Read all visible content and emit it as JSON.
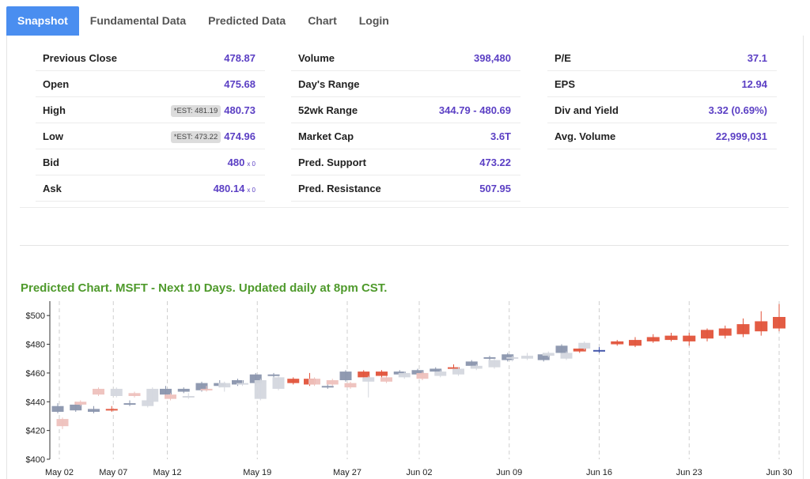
{
  "tabs": [
    {
      "label": "Snapshot",
      "active": true
    },
    {
      "label": "Fundamental Data",
      "active": false
    },
    {
      "label": "Predicted Data",
      "active": false
    },
    {
      "label": "Chart",
      "active": false
    },
    {
      "label": "Login",
      "active": false
    }
  ],
  "stats": {
    "col1": [
      {
        "label": "Previous Close",
        "value": "478.87"
      },
      {
        "label": "Open",
        "value": "475.68"
      },
      {
        "label": "High",
        "est": "*EST: 481.19",
        "value": "480.73"
      },
      {
        "label": "Low",
        "est": "*EST: 473.22",
        "value": "474.96"
      },
      {
        "label": "Bid",
        "value": "480",
        "suffix": "x 0"
      },
      {
        "label": "Ask",
        "value": "480.14",
        "suffix": "x 0"
      }
    ],
    "col2": [
      {
        "label": "Volume",
        "value": "398,480"
      },
      {
        "label": "Day's Range",
        "value": ""
      },
      {
        "label": "52wk Range",
        "value": "344.79 - 480.69"
      },
      {
        "label": "Market Cap",
        "value": "3.6T"
      },
      {
        "label": "Pred. Support",
        "value": "473.22"
      },
      {
        "label": "Pred. Resistance",
        "value": "507.95"
      }
    ],
    "col3": [
      {
        "label": "P/E",
        "value": "37.1"
      },
      {
        "label": "EPS",
        "value": "12.94"
      },
      {
        "label": "Div and Yield",
        "value": "3.32 (0.69%)"
      },
      {
        "label": "Avg. Volume",
        "value": "22,999,031"
      }
    ]
  },
  "chart_title": "Predicted Chart. MSFT - Next 10 Days. Updated daily at 8pm CST.",
  "colors": {
    "accent": "#4a8ef0",
    "value_text": "#5b3fc4",
    "title_green": "#4f9a2c",
    "actual_candle": "#8a95ad",
    "actual_light": "#d4d7de",
    "predicted_light": "#eec1bd",
    "predicted_strong": "#e2533a",
    "current_line": "#3b4fa8"
  },
  "chart_data": {
    "type": "candlestick",
    "title": "Predicted Chart. MSFT - Next 10 Days. Updated daily at 8pm CST.",
    "ylim": [
      400,
      510
    ],
    "yticks": [
      "$400",
      "$420",
      "$440",
      "$460",
      "$480",
      "$500"
    ],
    "xticks": [
      "May 02",
      "May 07",
      "May 12",
      "May 19",
      "May 27",
      "Jun 02",
      "Jun 09",
      "Jun 16",
      "Jun 23",
      "Jun 30"
    ],
    "candles": [
      {
        "x": "May 02",
        "o": 433,
        "c": 437,
        "h": 439,
        "l": 432,
        "kind": "actual"
      },
      {
        "x": "May 02p",
        "o": 428,
        "c": 423,
        "h": 429,
        "l": 421,
        "kind": "pred-light"
      },
      {
        "x": "May 05",
        "o": 434,
        "c": 438,
        "h": 440,
        "l": 433,
        "kind": "actual"
      },
      {
        "x": "May 05p",
        "o": 438,
        "c": 440,
        "h": 441,
        "l": 437,
        "kind": "pred-light"
      },
      {
        "x": "May 06",
        "o": 433,
        "c": 435,
        "h": 437,
        "l": 432,
        "kind": "actual"
      },
      {
        "x": "May 06p",
        "o": 445,
        "c": 449,
        "h": 450,
        "l": 444,
        "kind": "pred-light"
      },
      {
        "x": "May 07",
        "o": 434,
        "c": 435,
        "h": 437,
        "l": 433,
        "kind": "pred-strong"
      },
      {
        "x": "May 07p",
        "o": 444,
        "c": 449,
        "h": 450,
        "l": 443,
        "kind": "actual-light"
      },
      {
        "x": "May 08",
        "o": 438,
        "c": 439,
        "h": 441,
        "l": 437,
        "kind": "actual"
      },
      {
        "x": "May 08p",
        "o": 444,
        "c": 446,
        "h": 447,
        "l": 443,
        "kind": "pred-light"
      },
      {
        "x": "May 09",
        "o": 437,
        "c": 441,
        "h": 443,
        "l": 436,
        "kind": "actual-light"
      },
      {
        "x": "May 09p",
        "o": 440,
        "c": 449,
        "h": 450,
        "l": 438,
        "kind": "actual-light"
      },
      {
        "x": "May 12",
        "o": 445,
        "c": 449,
        "h": 451,
        "l": 444,
        "kind": "actual"
      },
      {
        "x": "May 12p",
        "o": 442,
        "c": 445,
        "h": 446,
        "l": 441,
        "kind": "pred-light"
      },
      {
        "x": "May 13",
        "o": 447,
        "c": 449,
        "h": 450,
        "l": 446,
        "kind": "actual"
      },
      {
        "x": "May 13p",
        "o": 443,
        "c": 444,
        "h": 446,
        "l": 442,
        "kind": "actual-light"
      },
      {
        "x": "May 14",
        "o": 448,
        "c": 453,
        "h": 454,
        "l": 447,
        "kind": "actual"
      },
      {
        "x": "May 14p",
        "o": 448,
        "c": 449,
        "h": 451,
        "l": 447,
        "kind": "pred-light"
      },
      {
        "x": "May 15",
        "o": 451,
        "c": 453,
        "h": 455,
        "l": 450,
        "kind": "actual"
      },
      {
        "x": "May 15p",
        "o": 450,
        "c": 453,
        "h": 454,
        "l": 447,
        "kind": "actual-light"
      },
      {
        "x": "May 16",
        "o": 452,
        "c": 455,
        "h": 456,
        "l": 451,
        "kind": "actual"
      },
      {
        "x": "May 16p",
        "o": 452,
        "c": 453,
        "h": 455,
        "l": 451,
        "kind": "actual-light"
      },
      {
        "x": "May 19",
        "o": 453,
        "c": 459,
        "h": 460,
        "l": 451,
        "kind": "actual"
      },
      {
        "x": "May 19p",
        "o": 442,
        "c": 455,
        "h": 456,
        "l": 441,
        "kind": "actual-light"
      },
      {
        "x": "May 20",
        "o": 458,
        "c": 459,
        "h": 460,
        "l": 457,
        "kind": "actual"
      },
      {
        "x": "May 20p",
        "o": 449,
        "c": 457,
        "h": 458,
        "l": 448,
        "kind": "actual-light"
      },
      {
        "x": "May 21",
        "o": 453,
        "c": 456,
        "h": 457,
        "l": 452,
        "kind": "pred-strong"
      },
      {
        "x": "May 22",
        "o": 452,
        "c": 456,
        "h": 460,
        "l": 451,
        "kind": "pred-strong"
      },
      {
        "x": "May 22p",
        "o": 452,
        "c": 456,
        "h": 457,
        "l": 451,
        "kind": "pred-light"
      },
      {
        "x": "May 23",
        "o": 450,
        "c": 451,
        "h": 452,
        "l": 449,
        "kind": "actual"
      },
      {
        "x": "May 23p",
        "o": 452,
        "c": 455,
        "h": 456,
        "l": 451,
        "kind": "pred-light"
      },
      {
        "x": "May 27",
        "o": 455,
        "c": 461,
        "h": 462,
        "l": 454,
        "kind": "actual"
      },
      {
        "x": "May 27p",
        "o": 450,
        "c": 453,
        "h": 454,
        "l": 449,
        "kind": "pred-light"
      },
      {
        "x": "May 28",
        "o": 457,
        "c": 461,
        "h": 462,
        "l": 456,
        "kind": "pred-strong"
      },
      {
        "x": "May 28p",
        "o": 454,
        "c": 457,
        "h": 458,
        "l": 443,
        "kind": "actual-light"
      },
      {
        "x": "May 29",
        "o": 458,
        "c": 461,
        "h": 462,
        "l": 457,
        "kind": "pred-strong"
      },
      {
        "x": "May 29p",
        "o": 454,
        "c": 457,
        "h": 458,
        "l": 453,
        "kind": "pred-light"
      },
      {
        "x": "May 30",
        "o": 459,
        "c": 461,
        "h": 462,
        "l": 458,
        "kind": "actual"
      },
      {
        "x": "May 30p",
        "o": 457,
        "c": 460,
        "h": 461,
        "l": 456,
        "kind": "actual-light"
      },
      {
        "x": "Jun 02",
        "o": 459,
        "c": 462,
        "h": 463,
        "l": 458,
        "kind": "actual"
      },
      {
        "x": "Jun 02p",
        "o": 456,
        "c": 460,
        "h": 461,
        "l": 455,
        "kind": "pred-light"
      },
      {
        "x": "Jun 03",
        "o": 461,
        "c": 463,
        "h": 464,
        "l": 460,
        "kind": "actual"
      },
      {
        "x": "Jun 03p",
        "o": 458,
        "c": 461,
        "h": 462,
        "l": 457,
        "kind": "actual-light"
      },
      {
        "x": "Jun 04",
        "o": 463,
        "c": 464,
        "h": 466,
        "l": 462,
        "kind": "pred-strong"
      },
      {
        "x": "Jun 04p",
        "o": 459,
        "c": 463,
        "h": 464,
        "l": 458,
        "kind": "actual-light"
      },
      {
        "x": "Jun 05",
        "o": 465,
        "c": 468,
        "h": 469,
        "l": 464,
        "kind": "actual"
      },
      {
        "x": "Jun 05p",
        "o": 463,
        "c": 465,
        "h": 466,
        "l": 462,
        "kind": "actual-light"
      },
      {
        "x": "Jun 06",
        "o": 470,
        "c": 471,
        "h": 472,
        "l": 469,
        "kind": "actual"
      },
      {
        "x": "Jun 06p",
        "o": 464,
        "c": 469,
        "h": 470,
        "l": 463,
        "kind": "actual-light"
      },
      {
        "x": "Jun 09",
        "o": 469,
        "c": 473,
        "h": 474,
        "l": 468,
        "kind": "actual"
      },
      {
        "x": "Jun 09p",
        "o": 470,
        "c": 471,
        "h": 472,
        "l": 468,
        "kind": "actual-light"
      },
      {
        "x": "Jun 10",
        "o": 470,
        "c": 472,
        "h": 474,
        "l": 469,
        "kind": "actual-light"
      },
      {
        "x": "Jun 11",
        "o": 469,
        "c": 473,
        "h": 474,
        "l": 468,
        "kind": "actual"
      },
      {
        "x": "Jun 11p",
        "o": 472,
        "c": 474,
        "h": 475,
        "l": 471,
        "kind": "actual-light"
      },
      {
        "x": "Jun 12",
        "o": 474,
        "c": 479,
        "h": 480,
        "l": 473,
        "kind": "actual"
      },
      {
        "x": "Jun 12p",
        "o": 470,
        "c": 474,
        "h": 475,
        "l": 469,
        "kind": "actual-light"
      },
      {
        "x": "Jun 13",
        "o": 475,
        "c": 477,
        "h": 478,
        "l": 474,
        "kind": "pred-strong"
      },
      {
        "x": "Jun 13p",
        "o": 477,
        "c": 481,
        "h": 482,
        "l": 476,
        "kind": "actual-light"
      },
      {
        "x": "Jun 16",
        "o": 475,
        "c": 476,
        "h": 478,
        "l": 474,
        "kind": "current"
      },
      {
        "x": "Jun 17",
        "o": 480,
        "c": 482,
        "h": 483,
        "l": 479,
        "kind": "pred-strong"
      },
      {
        "x": "Jun 18",
        "o": 479,
        "c": 483,
        "h": 485,
        "l": 478,
        "kind": "pred-strong"
      },
      {
        "x": "Jun 19",
        "o": 482,
        "c": 485,
        "h": 487,
        "l": 481,
        "kind": "pred-strong"
      },
      {
        "x": "Jun 20",
        "o": 483,
        "c": 486,
        "h": 488,
        "l": 482,
        "kind": "pred-strong"
      },
      {
        "x": "Jun 23",
        "o": 482,
        "c": 486,
        "h": 488,
        "l": 479,
        "kind": "pred-strong"
      },
      {
        "x": "Jun 24",
        "o": 484,
        "c": 490,
        "h": 491,
        "l": 482,
        "kind": "pred-strong"
      },
      {
        "x": "Jun 25",
        "o": 486,
        "c": 491,
        "h": 493,
        "l": 484,
        "kind": "pred-strong"
      },
      {
        "x": "Jun 26",
        "o": 487,
        "c": 494,
        "h": 498,
        "l": 485,
        "kind": "pred-strong"
      },
      {
        "x": "Jun 27",
        "o": 489,
        "c": 496,
        "h": 503,
        "l": 486,
        "kind": "pred-strong"
      },
      {
        "x": "Jun 30",
        "o": 491,
        "c": 499,
        "h": 508,
        "l": 489,
        "kind": "pred-strong"
      }
    ]
  }
}
